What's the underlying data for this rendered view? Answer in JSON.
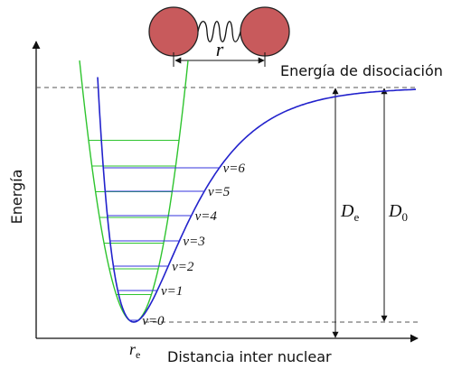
{
  "title": "Energía de disociación",
  "y_axis_label": "Energía",
  "x_axis_label": "Distancia inter nuclear",
  "bond_label": "r",
  "equilibrium_label": {
    "symbol": "r",
    "subscript": "e"
  },
  "De_label": {
    "symbol": "D",
    "subscript": "e"
  },
  "D0_label": {
    "symbol": "D",
    "subscript": "0"
  },
  "levels": [
    "v=0",
    "v=1",
    "v=2",
    "v=3",
    "v=4",
    "v=5",
    "v=6"
  ]
}
